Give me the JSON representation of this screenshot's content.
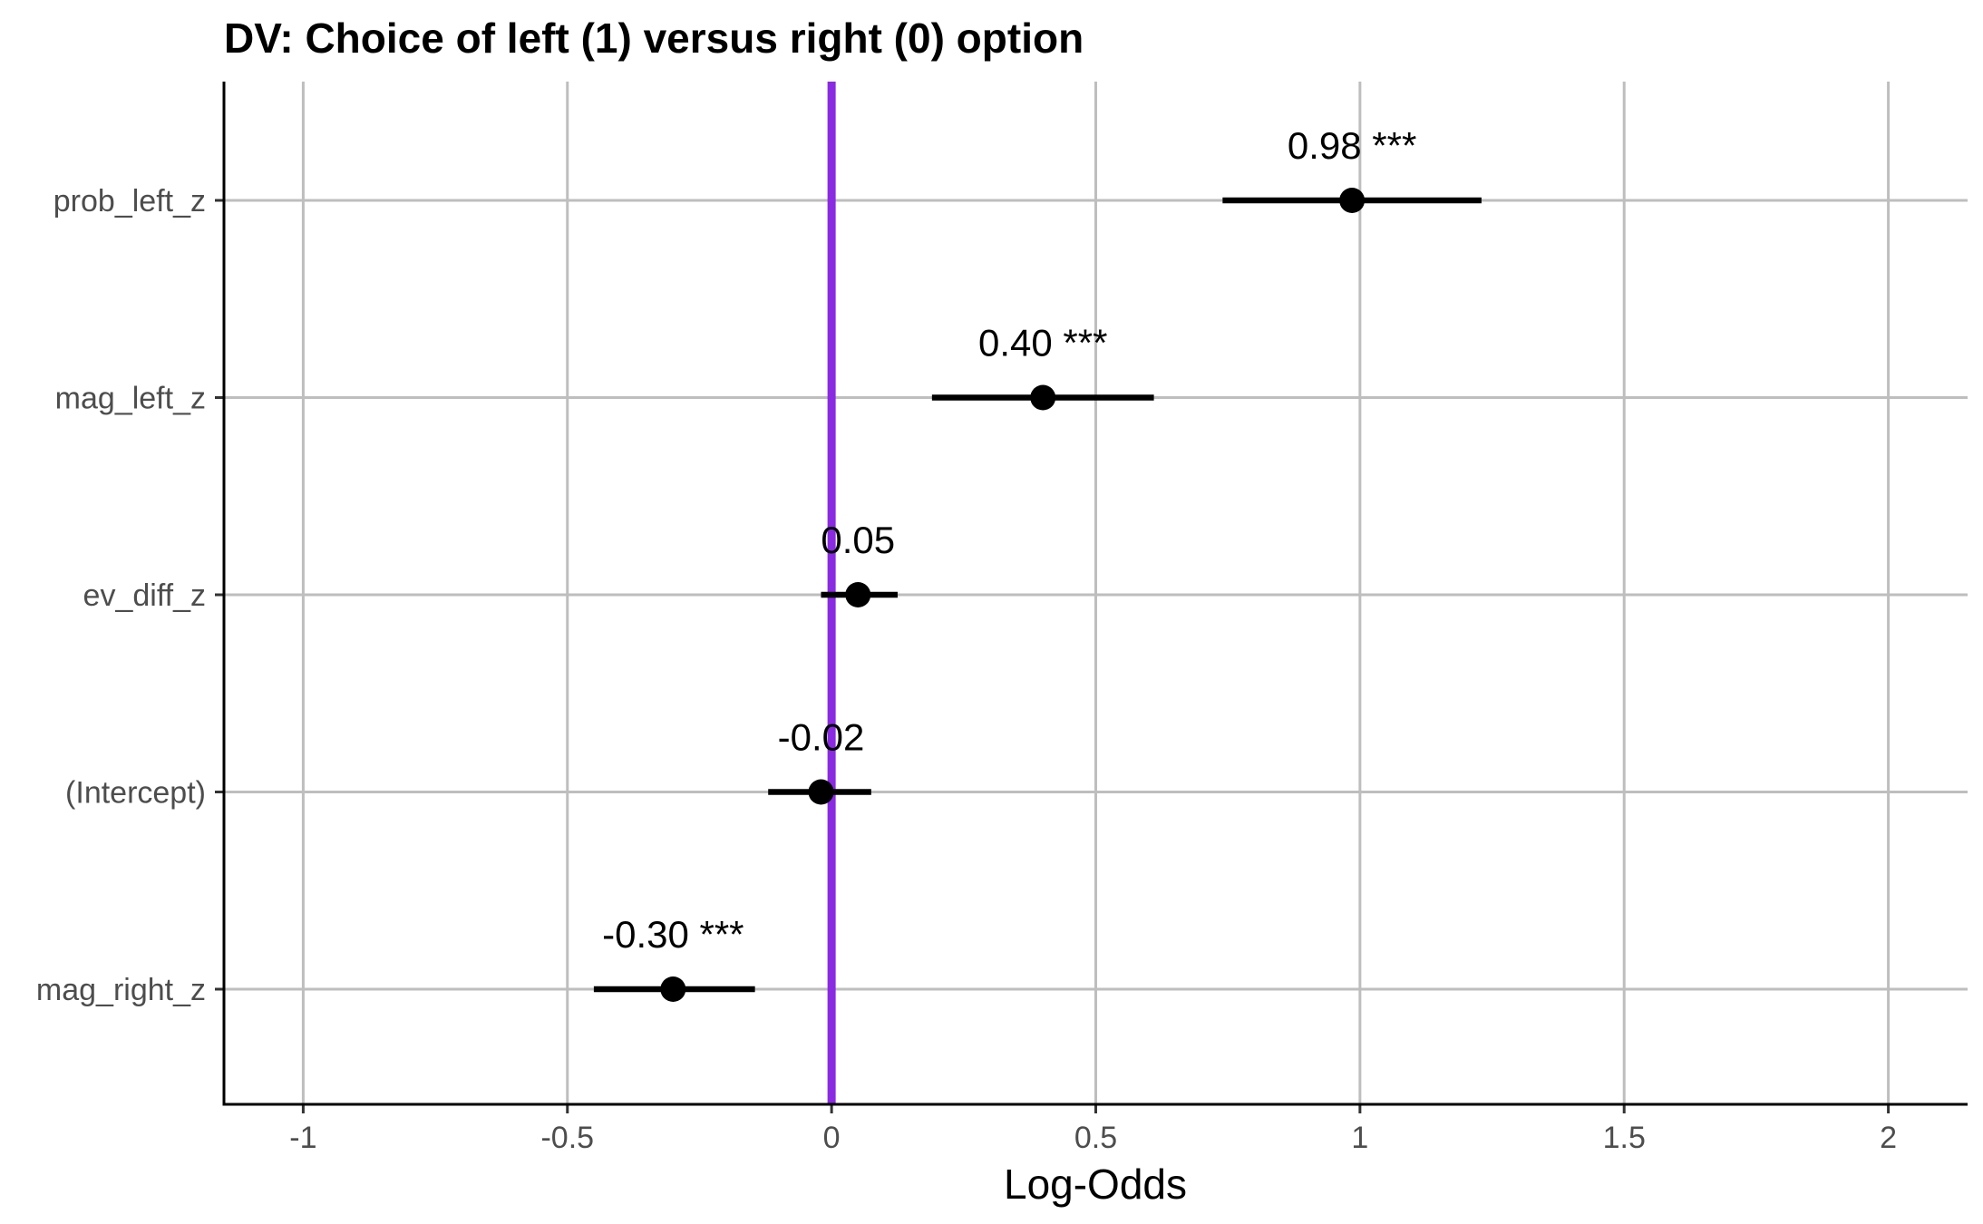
{
  "chart_data": {
    "type": "forest",
    "title": "DV: Choice of left (1) versus right (0) option",
    "xlabel": "Log-Odds",
    "ylabel": "",
    "xlim": [
      -1.15,
      2.15
    ],
    "xticks": [
      -1,
      -0.5,
      0,
      0.5,
      1,
      1.5,
      2
    ],
    "xtick_labels": [
      "-1",
      "-0.5",
      "0",
      "0.5",
      "1",
      "1.5",
      "2"
    ],
    "reference_line": {
      "x": 0,
      "color": "#8a2be2"
    },
    "grid": true,
    "point_color": "#000000",
    "terms": [
      {
        "name": "prob_left_z",
        "estimate": 0.985,
        "ci_low": 0.74,
        "ci_high": 1.23,
        "label": "0.98 ***"
      },
      {
        "name": "mag_left_z",
        "estimate": 0.4,
        "ci_low": 0.19,
        "ci_high": 0.61,
        "label": "0.40 ***"
      },
      {
        "name": "ev_diff_z",
        "estimate": 0.05,
        "ci_low": -0.02,
        "ci_high": 0.125,
        "label": "0.05"
      },
      {
        "name": "(Intercept)",
        "estimate": -0.02,
        "ci_low": -0.12,
        "ci_high": 0.075,
        "label": "-0.02"
      },
      {
        "name": "mag_right_z",
        "estimate": -0.3,
        "ci_low": -0.45,
        "ci_high": -0.145,
        "label": "-0.30 ***"
      }
    ]
  }
}
